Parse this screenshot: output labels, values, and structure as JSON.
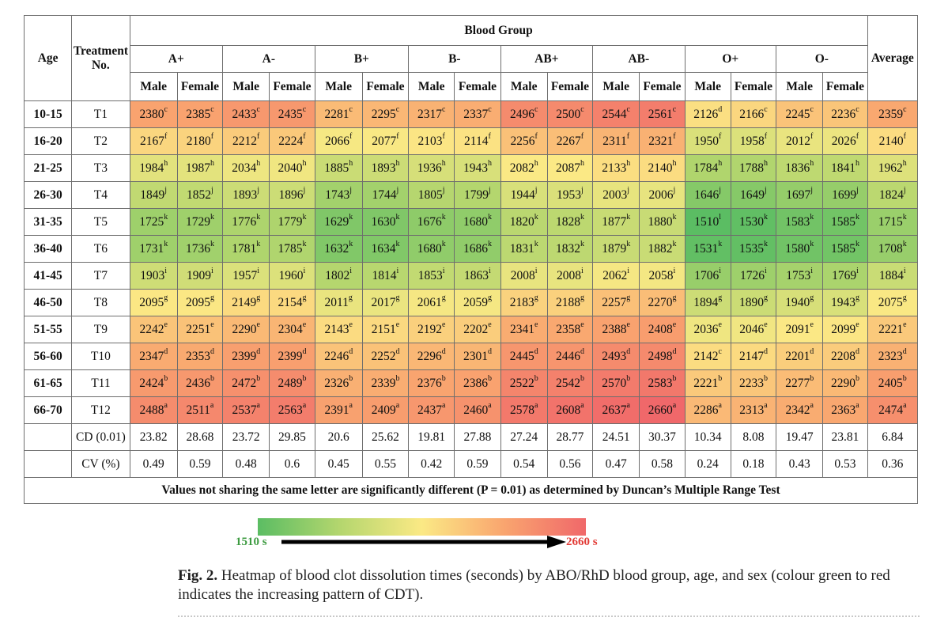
{
  "chart_data": {
    "type": "heatmap",
    "title": "",
    "headers": {
      "age": "Age",
      "treatment": "Treatment No.",
      "blood_group": "Blood Group",
      "average": "Average",
      "male": "Male",
      "female": "Female"
    },
    "blood_groups": [
      "A+",
      "A-",
      "B+",
      "B-",
      "AB+",
      "AB-",
      "O+",
      "O-"
    ],
    "rows": [
      {
        "age": "10-15",
        "treatment": "T1",
        "values": [
          2380,
          2385,
          2433,
          2435,
          2281,
          2295,
          2317,
          2337,
          2496,
          2500,
          2544,
          2561,
          2126,
          2166,
          2245,
          2236,
          2359
        ],
        "letters": [
          "c",
          "c",
          "c",
          "c",
          "c",
          "c",
          "c",
          "c",
          "c",
          "c",
          "c",
          "c",
          "d",
          "c",
          "c",
          "c",
          "c"
        ]
      },
      {
        "age": "16-20",
        "treatment": "T2",
        "values": [
          2167,
          2180,
          2212,
          2224,
          2066,
          2077,
          2103,
          2114,
          2256,
          2267,
          2311,
          2321,
          1950,
          1958,
          2012,
          2026,
          2140
        ],
        "letters": [
          "f",
          "f",
          "f",
          "f",
          "f",
          "f",
          "f",
          "f",
          "f",
          "f",
          "f",
          "f",
          "f",
          "f",
          "f",
          "f",
          "f"
        ]
      },
      {
        "age": "21-25",
        "treatment": "T3",
        "values": [
          1984,
          1987,
          2034,
          2040,
          1885,
          1893,
          1936,
          1943,
          2082,
          2087,
          2133,
          2140,
          1784,
          1788,
          1836,
          1841,
          1962
        ],
        "letters": [
          "h",
          "h",
          "h",
          "h",
          "h",
          "h",
          "h",
          "h",
          "h",
          "h",
          "h",
          "h",
          "h",
          "h",
          "h",
          "h",
          "h"
        ]
      },
      {
        "age": "26-30",
        "treatment": "T4",
        "values": [
          1849,
          1852,
          1893,
          1896,
          1743,
          1744,
          1805,
          1799,
          1944,
          1953,
          2003,
          2006,
          1646,
          1649,
          1697,
          1699,
          1824
        ],
        "letters": [
          "j",
          "j",
          "j",
          "j",
          "j",
          "j",
          "j",
          "j",
          "j",
          "j",
          "j",
          "j",
          "j",
          "j",
          "j",
          "j",
          "j"
        ]
      },
      {
        "age": "31-35",
        "treatment": "T5",
        "values": [
          1725,
          1729,
          1776,
          1779,
          1629,
          1630,
          1676,
          1680,
          1820,
          1828,
          1877,
          1880,
          1510,
          1530,
          1583,
          1585,
          1715
        ],
        "letters": [
          "k",
          "k",
          "k",
          "k",
          "k",
          "k",
          "k",
          "k",
          "k",
          "k",
          "k",
          "k",
          "l",
          "k",
          "k",
          "k",
          "k"
        ]
      },
      {
        "age": "36-40",
        "treatment": "T6",
        "values": [
          1731,
          1736,
          1781,
          1785,
          1632,
          1634,
          1680,
          1686,
          1831,
          1832,
          1879,
          1882,
          1531,
          1535,
          1580,
          1585,
          1708
        ],
        "letters": [
          "k",
          "k",
          "k",
          "k",
          "k",
          "k",
          "k",
          "k",
          "k",
          "k",
          "k",
          "k",
          "k",
          "k",
          "k",
          "k",
          "k"
        ]
      },
      {
        "age": "41-45",
        "treatment": "T7",
        "values": [
          1903,
          1909,
          1957,
          1960,
          1802,
          1814,
          1853,
          1863,
          2008,
          2008,
          2062,
          2058,
          1706,
          1726,
          1753,
          1769,
          1884
        ],
        "letters": [
          "i",
          "i",
          "i",
          "i",
          "i",
          "i",
          "i",
          "i",
          "i",
          "i",
          "i",
          "i",
          "i",
          "i",
          "i",
          "i",
          "i"
        ]
      },
      {
        "age": "46-50",
        "treatment": "T8",
        "values": [
          2095,
          2095,
          2149,
          2154,
          2011,
          2017,
          2061,
          2059,
          2183,
          2188,
          2257,
          2270,
          1894,
          1890,
          1940,
          1943,
          2075
        ],
        "letters": [
          "g",
          "g",
          "g",
          "g",
          "g",
          "g",
          "g",
          "g",
          "g",
          "g",
          "g",
          "g",
          "g",
          "g",
          "g",
          "g",
          "g"
        ]
      },
      {
        "age": "51-55",
        "treatment": "T9",
        "values": [
          2242,
          2251,
          2290,
          2304,
          2143,
          2151,
          2192,
          2202,
          2341,
          2358,
          2388,
          2408,
          2036,
          2046,
          2091,
          2099,
          2221
        ],
        "letters": [
          "e",
          "e",
          "e",
          "e",
          "e",
          "e",
          "e",
          "e",
          "e",
          "e",
          "e",
          "e",
          "e",
          "e",
          "e",
          "e",
          "e"
        ]
      },
      {
        "age": "56-60",
        "treatment": "T10",
        "values": [
          2347,
          2353,
          2399,
          2399,
          2246,
          2252,
          2296,
          2301,
          2445,
          2446,
          2493,
          2498,
          2142,
          2147,
          2201,
          2208,
          2323
        ],
        "letters": [
          "d",
          "d",
          "d",
          "d",
          "d",
          "d",
          "d",
          "d",
          "d",
          "d",
          "d",
          "d",
          "c",
          "d",
          "d",
          "d",
          "d"
        ]
      },
      {
        "age": "61-65",
        "treatment": "T11",
        "values": [
          2424,
          2436,
          2472,
          2489,
          2326,
          2339,
          2376,
          2386,
          2522,
          2542,
          2570,
          2583,
          2221,
          2233,
          2277,
          2290,
          2405
        ],
        "letters": [
          "b",
          "b",
          "b",
          "b",
          "b",
          "b",
          "b",
          "b",
          "b",
          "b",
          "b",
          "b",
          "b",
          "b",
          "b",
          "b",
          "b"
        ]
      },
      {
        "age": "66-70",
        "treatment": "T12",
        "values": [
          2488,
          2511,
          2537,
          2563,
          2391,
          2409,
          2437,
          2460,
          2578,
          2608,
          2637,
          2660,
          2286,
          2313,
          2342,
          2363,
          2474
        ],
        "letters": [
          "a",
          "a",
          "a",
          "a",
          "a",
          "a",
          "a",
          "a",
          "a",
          "a",
          "a",
          "a",
          "a",
          "a",
          "a",
          "a",
          "a"
        ]
      }
    ],
    "stats": [
      {
        "label": "CD (0.01)",
        "values": [
          "23.82",
          "28.68",
          "23.72",
          "29.85",
          "20.6",
          "25.62",
          "19.81",
          "27.88",
          "27.24",
          "28.77",
          "24.51",
          "30.37",
          "10.34",
          "8.08",
          "19.47",
          "23.81",
          "6.84"
        ]
      },
      {
        "label": "CV (%)",
        "values": [
          "0.49",
          "0.59",
          "0.48",
          "0.6",
          "0.45",
          "0.55",
          "0.42",
          "0.59",
          "0.54",
          "0.56",
          "0.47",
          "0.58",
          "0.24",
          "0.18",
          "0.43",
          "0.53",
          "0.36"
        ]
      }
    ],
    "footnote": "Values not sharing the same letter are significantly different (P = 0.01) as determined by Duncan’s Multiple Range Test",
    "colorscale": {
      "min": 1510,
      "max": 2660,
      "min_label": "1510 s",
      "max_label": "2660 s",
      "colors": [
        "#5bbd63",
        "#b4d66e",
        "#fbe985",
        "#f9a56f",
        "#f0686a"
      ],
      "min_label_color": "#3d9b41",
      "max_label_color": "#e23a35"
    }
  },
  "caption": {
    "label": "Fig. 2.",
    "text": " Heatmap of blood clot dissolution times (seconds) by ABO/RhD blood group, age, and sex (colour green to red indicates the increasing pattern of CDT)."
  }
}
